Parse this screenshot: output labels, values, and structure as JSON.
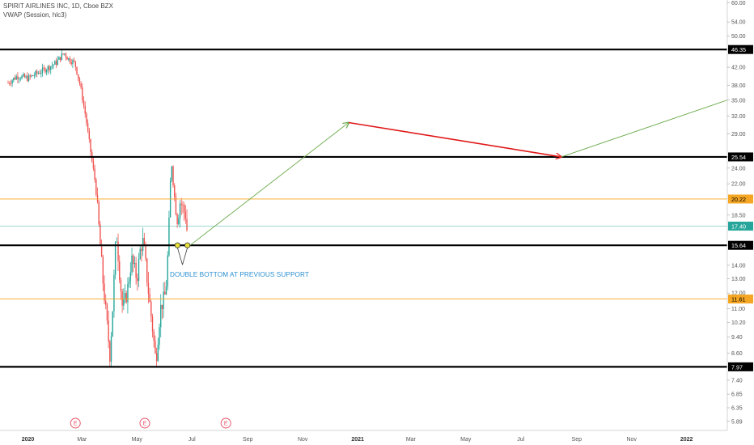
{
  "header": {
    "symbol_title": "SPIRIT AIRLINES INC, 1D, Cboe BZX",
    "indicator": "VWAP (Session, hlc3)"
  },
  "annotation": "DOUBLE BOTTOM AT PREVIOUS SUPPORT",
  "colors": {
    "up": "#26a69a",
    "down": "#ef5350",
    "level_line": "#000000",
    "orange_line": "#f5a623",
    "teal_line": "#26a69a",
    "green_arrow": "#6aaa4a",
    "red_arrow": "#e01818",
    "marker_fill": "#e8e23c",
    "earnings_marker": "#e84a5f"
  },
  "chart_data": {
    "type": "candlestick",
    "scale": "log",
    "ylim": [
      5.6,
      61
    ],
    "y_ticks": [
      "60.00",
      "54.00",
      "50.00",
      "46.35",
      "42.00",
      "38.00",
      "35.00",
      "32.00",
      "29.00",
      "25.54",
      "24.00",
      "22.00",
      "20.22",
      "18.50",
      "17.40",
      "15.64",
      "14.00",
      "13.00",
      "12.00",
      "11.61",
      "11.00",
      "10.20",
      "9.40",
      "8.60",
      "7.97",
      "7.40",
      "6.85",
      "6.35",
      "5.89"
    ],
    "x_ticks": [
      "2020",
      "Mar",
      "May",
      "Jul",
      "Sep",
      "Nov",
      "2021",
      "Mar",
      "May",
      "Jul",
      "Sep",
      "Nov",
      "2022"
    ],
    "price_levels": [
      {
        "label": "46.35",
        "value": 46.35,
        "style": "black"
      },
      {
        "label": "25.54",
        "value": 25.54,
        "style": "black"
      },
      {
        "label": "20.22",
        "value": 20.22,
        "style": "orange"
      },
      {
        "label": "17.40",
        "value": 17.4,
        "style": "teal"
      },
      {
        "label": "15.64",
        "value": 15.64,
        "style": "black"
      },
      {
        "label": "11.61",
        "value": 11.61,
        "style": "orange"
      },
      {
        "label": "7.97",
        "value": 7.97,
        "style": "black"
      }
    ],
    "price_path": [
      [
        "2019-12-10",
        38.5
      ],
      [
        "2019-12-20",
        40.0
      ],
      [
        "2020-01-01",
        39.5
      ],
      [
        "2020-01-10",
        40.5
      ],
      [
        "2020-01-20",
        41.5
      ],
      [
        "2020-02-01",
        43.0
      ],
      [
        "2020-02-10",
        45.5
      ],
      [
        "2020-02-15",
        44.0
      ],
      [
        "2020-02-22",
        43.0
      ],
      [
        "2020-02-28",
        38.0
      ],
      [
        "2020-03-05",
        32.0
      ],
      [
        "2020-03-12",
        25.0
      ],
      [
        "2020-03-16",
        22.0
      ],
      [
        "2020-03-20",
        17.0
      ],
      [
        "2020-03-24",
        13.0
      ],
      [
        "2020-03-28",
        10.5
      ],
      [
        "2020-04-01",
        8.5
      ],
      [
        "2020-04-04",
        11.0
      ],
      [
        "2020-04-08",
        17.0
      ],
      [
        "2020-04-11",
        14.0
      ],
      [
        "2020-04-15",
        11.0
      ],
      [
        "2020-04-20",
        12.0
      ],
      [
        "2020-04-25",
        14.5
      ],
      [
        "2020-05-01",
        13.0
      ],
      [
        "2020-05-05",
        15.5
      ],
      [
        "2020-05-08",
        16.0
      ],
      [
        "2020-05-13",
        12.5
      ],
      [
        "2020-05-18",
        10.0
      ],
      [
        "2020-05-22",
        8.2
      ],
      [
        "2020-05-27",
        11.0
      ],
      [
        "2020-06-02",
        12.0
      ],
      [
        "2020-06-05",
        16.0
      ],
      [
        "2020-06-08",
        25.5
      ],
      [
        "2020-06-11",
        21.0
      ],
      [
        "2020-06-15",
        18.0
      ],
      [
        "2020-06-18",
        20.0
      ],
      [
        "2020-06-22",
        19.0
      ],
      [
        "2020-06-24",
        18.5
      ],
      [
        "2020-06-26",
        16.5
      ]
    ],
    "double_bottom_points": [
      [
        "2020-06-15",
        15.64
      ],
      [
        "2020-06-26",
        15.64
      ]
    ],
    "earnings_markers": [
      "2020-02-20",
      "2020-05-07",
      "2020-08-05"
    ],
    "projection": [
      {
        "from": [
          "2020-06-29",
          15.64
        ],
        "to": [
          "2020-12-22",
          30.9
        ],
        "color": "green"
      },
      {
        "from": [
          "2020-12-22",
          30.9
        ],
        "to": [
          "2021-08-15",
          25.54
        ],
        "color": "red"
      },
      {
        "from": [
          "2021-08-15",
          25.54
        ],
        "to": [
          "2022-02-15",
          35.0
        ],
        "color": "green"
      }
    ]
  }
}
